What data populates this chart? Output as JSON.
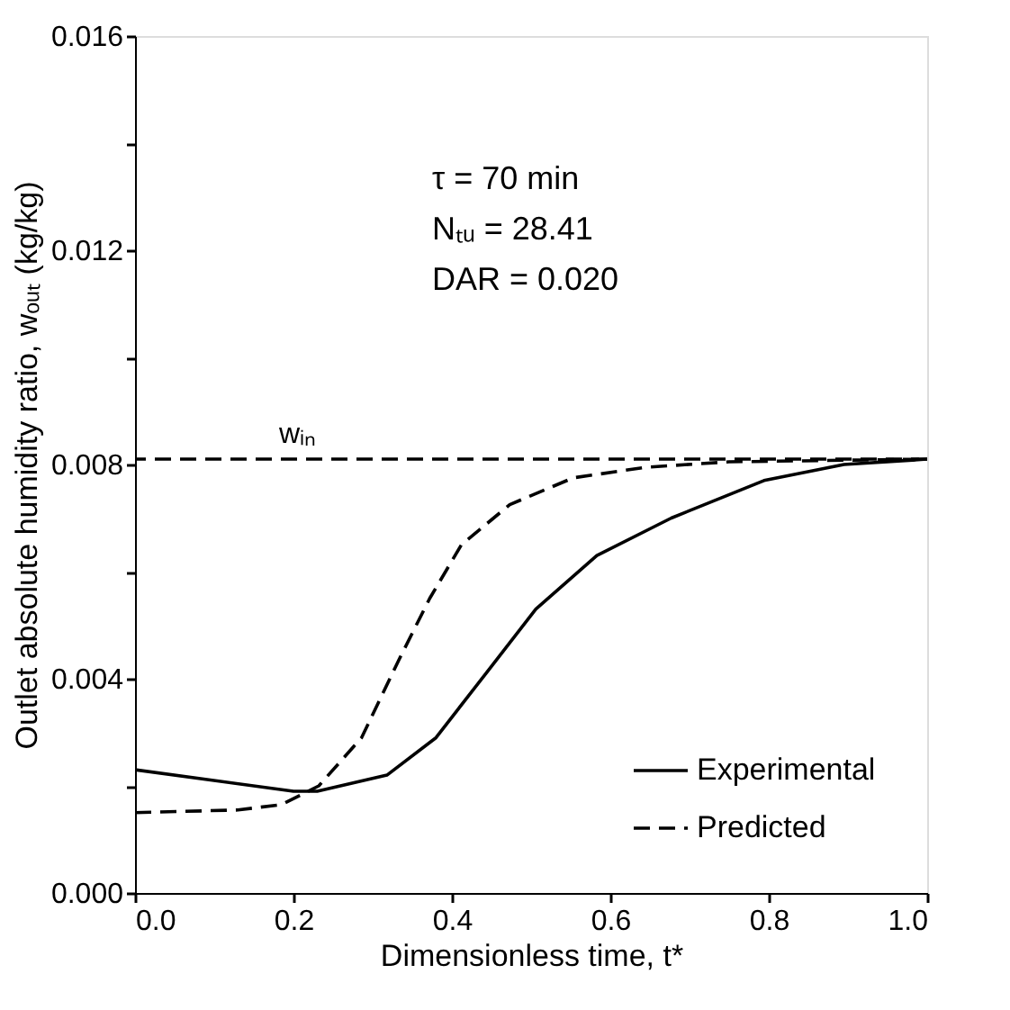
{
  "chart_data": {
    "type": "line",
    "xlabel": "Dimensionless time, t*",
    "ylabel": "Outlet absolute humidity ratio, wₒᵤₜ (kg/kg)",
    "xlim": [
      0,
      1
    ],
    "ylim": [
      0,
      0.016
    ],
    "xticks": [
      {
        "value": 0,
        "label": "0.0"
      },
      {
        "value": 0.2,
        "label": "0.2"
      },
      {
        "value": 0.4,
        "label": "0.4"
      },
      {
        "value": 0.6,
        "label": "0.6"
      },
      {
        "value": 0.8,
        "label": "0.8"
      },
      {
        "value": 1,
        "label": "1.0"
      }
    ],
    "yticks": [
      {
        "value": 0,
        "label": "0.000"
      },
      {
        "value": 0.002,
        "label": null
      },
      {
        "value": 0.004,
        "label": "0.004"
      },
      {
        "value": 0.006,
        "label": null
      },
      {
        "value": 0.008,
        "label": "0.008"
      },
      {
        "value": 0.01,
        "label": null
      },
      {
        "value": 0.012,
        "label": "0.012"
      },
      {
        "value": 0.014,
        "label": null
      },
      {
        "value": 0.016,
        "label": "0.016"
      }
    ],
    "grid": false,
    "legend": "bottom right",
    "marker": "none",
    "series": [
      {
        "name": "Experimental",
        "color": "#000000",
        "line_style": "solid",
        "x": [
          0,
          0.2,
          0.23,
          0.318,
          0.38,
          0.443,
          0.506,
          0.583,
          0.677,
          0.794,
          0.895,
          1.0
        ],
        "values": [
          0.0023,
          0.0019,
          0.0019,
          0.0022,
          0.0029,
          0.0041,
          0.0053,
          0.0063,
          0.007,
          0.0077,
          0.008,
          0.0081
        ]
      },
      {
        "name": "Predicted",
        "color": "#000000",
        "line_style": "dashed",
        "x": [
          0,
          0.13,
          0.185,
          0.232,
          0.286,
          0.333,
          0.372,
          0.412,
          0.473,
          0.553,
          0.646,
          0.75,
          1.0
        ],
        "values": [
          0.0015,
          0.00155,
          0.00165,
          0.002,
          0.0029,
          0.00435,
          0.0055,
          0.0065,
          0.00725,
          0.00775,
          0.00795,
          0.00805,
          0.0081
        ]
      }
    ],
    "ref_lines": [
      {
        "axis": "y",
        "value": 0.0081,
        "label": "wᵢₙ",
        "line_style": "dashed",
        "color": "#000000"
      }
    ],
    "annotations": [
      "τ = 70 min",
      "Nₜᵤ = 28.41",
      "DAR = 0.020"
    ]
  }
}
